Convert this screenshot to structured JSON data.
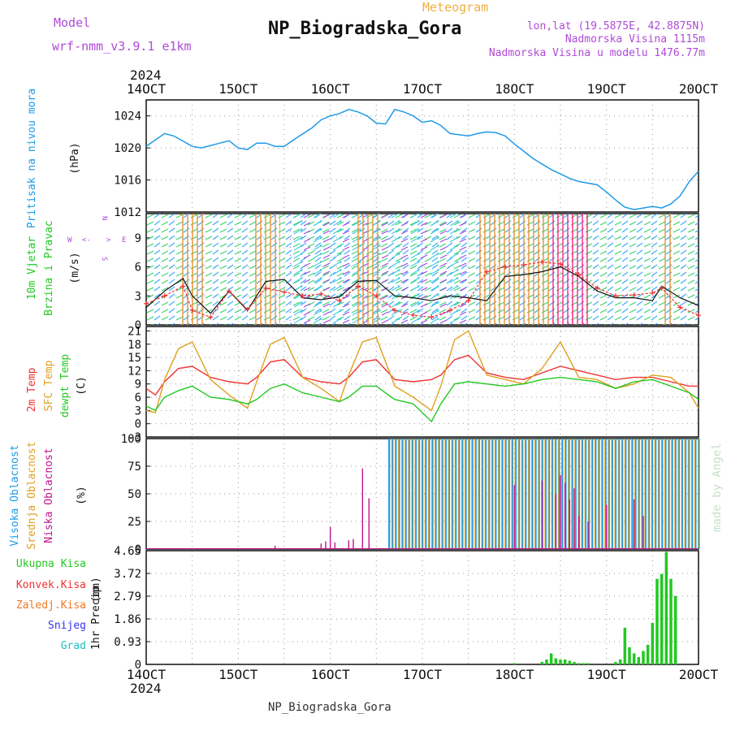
{
  "header": {
    "model_label": "Model",
    "model_name": "wrf-nmm_v3.9.1 e1km",
    "meteogram_label": "Meteogram",
    "title": "NP_Biogradska_Gora",
    "lonlat": "lon,lat (19.5875E, 42.8875N)",
    "elevation": "Nadmorska Visina 1115m",
    "model_elevation": "Nadmorska Visina u modelu 1476.77m",
    "year": "2024"
  },
  "footer": {
    "station": "NP_Biogradska_Gora",
    "year": "2024",
    "watermark": "made by Angel"
  },
  "colors": {
    "pressure": "#1e9be6",
    "t2m": "#ee3333",
    "sfc": "#e0a020",
    "dewpt": "#22c822",
    "cloud_high": "#1e9be6",
    "cloud_mid": "#e0a020",
    "cloud_low": "#c0148c",
    "precip_total": "#22c822",
    "precip_conv": "#ee3333",
    "precip_frozen": "#f07820",
    "snow": "#3333ee",
    "hail": "#20c0c0",
    "wind_speed": "#111111",
    "wind_gust": "#ee3333"
  },
  "chart_data": [
    {
      "type": "line",
      "panel": "pressure",
      "ylabel": "Pritisak na nivou mora",
      "units": "(hPa)",
      "x_ticks": [
        "14OCT",
        "15OCT",
        "16OCT",
        "17OCT",
        "18OCT",
        "19OCT",
        "20OCT"
      ],
      "yticks": [
        "1012",
        "1016",
        "1020",
        "1024"
      ],
      "ylim": [
        1012,
        1026
      ],
      "x": [
        14.0,
        14.1,
        14.2,
        14.3,
        14.5,
        14.6,
        14.8,
        14.9,
        15.0,
        15.1,
        15.2,
        15.3,
        15.4,
        15.5,
        15.6,
        15.8,
        15.9,
        16.0,
        16.1,
        16.2,
        16.3,
        16.4,
        16.5,
        16.6,
        16.7,
        16.8,
        16.9,
        17.0,
        17.1,
        17.2,
        17.3,
        17.5,
        17.6,
        17.7,
        17.8,
        17.9,
        18.0,
        18.1,
        18.2,
        18.4,
        18.6,
        18.7,
        18.9,
        19.0,
        19.1,
        19.2,
        19.3,
        19.4,
        19.5,
        19.6,
        19.7,
        19.8,
        19.9,
        20.0
      ],
      "y": [
        1020.2,
        1021.0,
        1021.8,
        1021.5,
        1020.2,
        1020.0,
        1020.6,
        1020.9,
        1020.0,
        1019.8,
        1020.6,
        1020.6,
        1020.2,
        1020.2,
        1021.0,
        1022.5,
        1023.5,
        1024.0,
        1024.3,
        1024.8,
        1024.5,
        1024.0,
        1023.1,
        1023.0,
        1024.8,
        1024.5,
        1024.0,
        1023.2,
        1023.4,
        1022.8,
        1021.8,
        1021.5,
        1021.8,
        1022.0,
        1021.9,
        1021.5,
        1020.5,
        1019.6,
        1018.7,
        1017.3,
        1016.2,
        1015.8,
        1015.4,
        1014.5,
        1013.5,
        1012.6,
        1012.3,
        1012.5,
        1012.7,
        1012.5,
        1013.0,
        1014.0,
        1015.8,
        1017.1
      ]
    },
    {
      "type": "line",
      "panel": "wind",
      "ylabel_1": "10m Vjetar",
      "ylabel_2": "Brzina i Pravac",
      "units": "(m/s)",
      "yticks": [
        "0",
        "3",
        "6",
        "9"
      ],
      "ylim": [
        0,
        11.5
      ],
      "direction_key": [
        "W",
        "<-",
        ">",
        "E",
        "N",
        "S"
      ],
      "series": [
        {
          "name": "speed",
          "x": [
            14.0,
            14.2,
            14.4,
            14.5,
            14.7,
            14.9,
            15.1,
            15.3,
            15.5,
            15.7,
            15.9,
            16.1,
            16.3,
            16.5,
            16.7,
            16.9,
            17.1,
            17.3,
            17.5,
            17.7,
            17.9,
            18.1,
            18.3,
            18.5,
            18.7,
            18.9,
            19.1,
            19.3,
            19.5,
            19.6,
            19.8,
            20.0
          ],
          "values": [
            1.8,
            3.5,
            4.8,
            3.0,
            1.2,
            3.5,
            1.5,
            4.5,
            4.7,
            2.8,
            2.6,
            2.9,
            4.5,
            4.6,
            3.0,
            2.8,
            2.5,
            3.0,
            2.8,
            2.5,
            5.0,
            5.2,
            5.5,
            6.0,
            5.0,
            3.5,
            2.8,
            2.8,
            2.5,
            4.0,
            2.8,
            2.0
          ]
        },
        {
          "name": "gust",
          "x": [
            14.0,
            14.2,
            14.4,
            14.5,
            14.7,
            14.9,
            15.1,
            15.3,
            15.5,
            15.7,
            15.9,
            16.1,
            16.3,
            16.5,
            16.7,
            16.9,
            17.1,
            17.3,
            17.5,
            17.7,
            17.9,
            18.1,
            18.3,
            18.5,
            18.7,
            18.9,
            19.1,
            19.3,
            19.5,
            19.6,
            19.8,
            20.0
          ],
          "values": [
            2.2,
            3.0,
            4.0,
            1.5,
            0.8,
            3.5,
            1.6,
            3.8,
            3.4,
            3.0,
            3.2,
            2.5,
            4.0,
            3.0,
            1.5,
            1.0,
            0.8,
            1.5,
            2.5,
            5.5,
            6.0,
            6.2,
            6.5,
            6.3,
            5.2,
            3.8,
            3.0,
            3.1,
            3.3,
            3.8,
            1.8,
            1.0
          ]
        }
      ]
    },
    {
      "type": "line",
      "panel": "temperature",
      "ylabel_1": "2m Temp",
      "ylabel_2": "SFC Temp",
      "ylabel_3": "dewpt Temp",
      "units": "(C)",
      "yticks": [
        "-3",
        "0",
        "3",
        "6",
        "9",
        "12",
        "15",
        "18",
        "21"
      ],
      "ylim": [
        -3,
        22
      ],
      "series": [
        {
          "name": "2m Temp",
          "x": [
            14.0,
            14.1,
            14.2,
            14.35,
            14.5,
            14.7,
            14.9,
            15.1,
            15.2,
            15.35,
            15.5,
            15.7,
            15.9,
            16.1,
            16.2,
            16.35,
            16.5,
            16.7,
            16.9,
            17.1,
            17.2,
            17.35,
            17.5,
            17.7,
            17.9,
            18.1,
            18.3,
            18.5,
            18.7,
            18.9,
            19.1,
            19.3,
            19.5,
            19.7,
            19.9,
            20.0
          ],
          "values": [
            8.0,
            6.5,
            9.5,
            12.5,
            13.0,
            10.5,
            9.5,
            9.0,
            10.5,
            14.0,
            14.5,
            10.5,
            9.5,
            9.0,
            10.5,
            14.0,
            14.5,
            10.0,
            9.5,
            10.0,
            11.0,
            14.5,
            15.5,
            11.5,
            10.5,
            10.0,
            11.5,
            13.0,
            12.0,
            11.0,
            10.0,
            10.5,
            10.5,
            9.5,
            8.5,
            8.5
          ]
        },
        {
          "name": "SFC Temp",
          "x": [
            14.0,
            14.1,
            14.2,
            14.35,
            14.5,
            14.7,
            14.9,
            15.1,
            15.2,
            15.35,
            15.5,
            15.7,
            15.9,
            16.1,
            16.2,
            16.35,
            16.5,
            16.7,
            16.9,
            17.1,
            17.2,
            17.35,
            17.5,
            17.7,
            17.9,
            18.1,
            18.3,
            18.5,
            18.7,
            18.9,
            19.1,
            19.3,
            19.5,
            19.7,
            19.9,
            20.0
          ],
          "values": [
            3.0,
            2.5,
            10.0,
            17.0,
            18.5,
            10.0,
            6.5,
            3.5,
            9.5,
            18.0,
            19.5,
            10.5,
            8.0,
            5.0,
            11.0,
            18.5,
            19.5,
            8.5,
            6.0,
            3.0,
            8.5,
            19.0,
            21.0,
            11.0,
            10.0,
            9.0,
            12.5,
            18.5,
            10.5,
            10.0,
            8.0,
            9.0,
            11.0,
            10.5,
            7.0,
            3.5
          ]
        },
        {
          "name": "dewpt Temp",
          "x": [
            14.0,
            14.1,
            14.2,
            14.35,
            14.5,
            14.7,
            14.9,
            15.1,
            15.2,
            15.35,
            15.5,
            15.7,
            15.9,
            16.1,
            16.2,
            16.35,
            16.5,
            16.7,
            16.9,
            17.1,
            17.2,
            17.35,
            17.5,
            17.7,
            17.9,
            18.1,
            18.3,
            18.5,
            18.7,
            18.9,
            19.1,
            19.3,
            19.5,
            19.7,
            19.9,
            20.0
          ],
          "values": [
            4.0,
            3.0,
            6.0,
            7.5,
            8.5,
            6.0,
            5.5,
            4.5,
            5.5,
            8.0,
            9.0,
            7.0,
            6.0,
            5.0,
            6.0,
            8.5,
            8.5,
            5.5,
            4.5,
            0.5,
            4.5,
            9.0,
            9.5,
            9.0,
            8.5,
            9.0,
            10.0,
            10.5,
            10.0,
            9.5,
            8.0,
            9.5,
            10.0,
            8.5,
            7.0,
            5.5
          ]
        }
      ]
    },
    {
      "type": "bar",
      "panel": "cloud",
      "ylabel_1": "Visoka Oblacnost",
      "ylabel_2": "Srednja Oblacnost",
      "ylabel_3": "Niska Oblacnost",
      "units": "(%)",
      "yticks": [
        "0",
        "25",
        "50",
        "75",
        "100"
      ],
      "ylim": [
        0,
        100
      ],
      "high_cloud": {
        "x_start": 16.63,
        "x_end": 20.0,
        "value": 100
      },
      "mid_cloud": {
        "x_start": 16.65,
        "x_end": 20.0,
        "value": 100
      },
      "low_cloud": {
        "x": [
          15.4,
          15.9,
          15.95,
          16.0,
          16.05,
          16.2,
          16.25,
          16.35,
          16.42,
          18.0,
          18.3,
          18.45,
          18.5,
          18.55,
          18.6,
          18.65,
          18.7,
          18.8,
          19.0,
          19.3,
          19.4
        ],
        "values": [
          3,
          5,
          7,
          20,
          6,
          8,
          9,
          73,
          46,
          58,
          62,
          50,
          67,
          60,
          45,
          55,
          30,
          25,
          40,
          45,
          30
        ]
      }
    },
    {
      "type": "bar",
      "panel": "precip",
      "ylabel_1": "1hr Precip",
      "units": "(mm)",
      "legend": [
        "Ukupna Kisa",
        "Konvek.Kisa",
        "Zaledj.Kisa",
        "Snijeg",
        "Grad"
      ],
      "yticks": [
        "0",
        "0.93",
        "1.86",
        "2.79",
        "3.72",
        "4.65"
      ],
      "ylim": [
        0,
        4.65
      ],
      "x": [
        18.0,
        18.3,
        18.35,
        18.4,
        18.45,
        18.5,
        18.55,
        18.6,
        18.65,
        18.7,
        18.75,
        18.8,
        19.1,
        19.15,
        19.2,
        19.25,
        19.3,
        19.35,
        19.4,
        19.45,
        19.5,
        19.55,
        19.6,
        19.65,
        19.7,
        19.75
      ],
      "values": [
        0.05,
        0.1,
        0.2,
        0.45,
        0.25,
        0.2,
        0.2,
        0.15,
        0.1,
        0.05,
        0.05,
        0.05,
        0.1,
        0.2,
        1.5,
        0.7,
        0.45,
        0.3,
        0.55,
        0.8,
        1.7,
        3.5,
        3.7,
        4.6,
        3.5,
        2.8
      ]
    }
  ]
}
